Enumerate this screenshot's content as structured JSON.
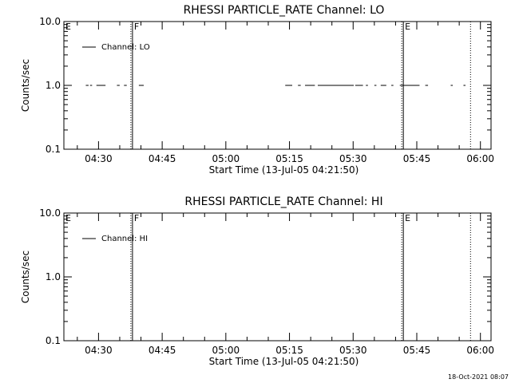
{
  "timestamp": "18-Oct-2021 08:07",
  "chart_data": [
    {
      "type": "line",
      "title": "RHESSI PARTICLE_RATE Channel: LO",
      "xlabel": "Start Time (13-Jul-05 04:21:50)",
      "ylabel": "Counts/sec",
      "yscale": "log",
      "ylim": [
        0.1,
        10.0
      ],
      "xlim": [
        "04:21:50",
        "06:02:30"
      ],
      "y_ticks": [
        "10.0",
        "1.0",
        "0.1"
      ],
      "x_ticks": [
        "04:30",
        "04:45",
        "05:00",
        "05:15",
        "05:30",
        "05:45",
        "06:00"
      ],
      "legend": {
        "label": "Channel: LO",
        "placement": "top-left"
      },
      "markers": [
        {
          "label": "E",
          "time": "04:21:50",
          "style": "dotted"
        },
        {
          "label": "F",
          "time": "04:38:00",
          "style": "solid"
        },
        {
          "label": "E",
          "time": "05:41:50",
          "style": "solid"
        },
        {
          "label": "",
          "time": "05:57:40",
          "style": "dotted"
        }
      ],
      "series": [
        {
          "name": "Channel: LO",
          "value": 1.0,
          "segments": [
            [
              "04:27:00",
              "04:27:30"
            ],
            [
              "04:28:00",
              "04:28:20"
            ],
            [
              "04:29:30",
              "04:31:30"
            ],
            [
              "04:34:20",
              "04:34:50"
            ],
            [
              "04:36:00",
              "04:36:30"
            ],
            [
              "04:39:30",
              "04:40:30"
            ],
            [
              "05:14:00",
              "05:15:30"
            ],
            [
              "05:17:00",
              "05:17:30"
            ],
            [
              "05:18:40",
              "05:20:50"
            ],
            [
              "05:21:40",
              "05:30:00"
            ],
            [
              "05:30:30",
              "05:32:10"
            ],
            [
              "05:33:00",
              "05:33:20"
            ],
            [
              "05:35:00",
              "05:35:20"
            ],
            [
              "05:36:30",
              "05:37:40"
            ],
            [
              "05:39:00",
              "05:39:20"
            ],
            [
              "05:41:00",
              "05:45:30"
            ],
            [
              "05:47:00",
              "05:47:30"
            ],
            [
              "05:53:00",
              "05:53:20"
            ],
            [
              "05:56:00",
              "05:56:20"
            ]
          ]
        }
      ]
    },
    {
      "type": "line",
      "title": "RHESSI PARTICLE_RATE Channel: HI",
      "xlabel": "Start Time (13-Jul-05 04:21:50)",
      "ylabel": "Counts/sec",
      "yscale": "log",
      "ylim": [
        0.1,
        10.0
      ],
      "xlim": [
        "04:21:50",
        "06:02:30"
      ],
      "y_ticks": [
        "10.0",
        "1.0",
        "0.1"
      ],
      "x_ticks": [
        "04:30",
        "04:45",
        "05:00",
        "05:15",
        "05:30",
        "05:45",
        "06:00"
      ],
      "legend": {
        "label": "Channel: HI",
        "placement": "top-left"
      },
      "markers": [
        {
          "label": "E",
          "time": "04:21:50",
          "style": "dotted"
        },
        {
          "label": "F",
          "time": "04:38:00",
          "style": "solid"
        },
        {
          "label": "E",
          "time": "05:41:50",
          "style": "solid"
        },
        {
          "label": "",
          "time": "05:57:40",
          "style": "dotted"
        }
      ],
      "series": [
        {
          "name": "Channel: HI",
          "value": 1.0,
          "segments": []
        }
      ]
    }
  ]
}
